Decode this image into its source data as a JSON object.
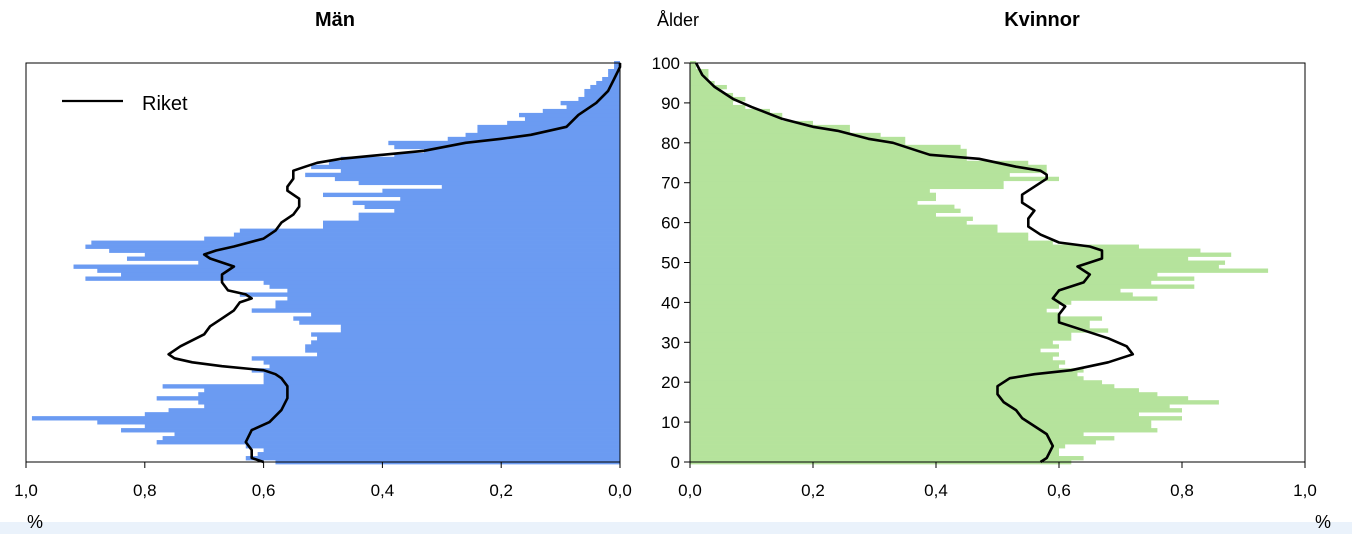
{
  "chart_data": {
    "type": "bar",
    "subtype": "population-pyramid",
    "left_title": "Män",
    "right_title": "Kvinnor",
    "age_axis_title": "Ålder",
    "unit_label": "%",
    "legend_line_label": "Riket",
    "age_ticks": [
      "0",
      "10",
      "20",
      "30",
      "40",
      "50",
      "60",
      "70",
      "80",
      "90",
      "100"
    ],
    "left_x_ticks": [
      "1,0",
      "0,8",
      "0,6",
      "0,4",
      "0,2",
      "0,0"
    ],
    "right_x_ticks": [
      "0,0",
      "0,2",
      "0,4",
      "0,6",
      "0,8",
      "1,0"
    ],
    "xlim": [
      0,
      1.0
    ],
    "ylim": [
      0,
      100
    ],
    "colors": {
      "men_bar": "#6b9bf2",
      "women_bar": "#b5e39c",
      "riket_line": "#000000"
    },
    "legend_position": "top-left",
    "series": [
      {
        "name": "Män",
        "values": [
          0.58,
          0.63,
          0.61,
          0.6,
          0.63,
          0.78,
          0.77,
          0.75,
          0.84,
          0.8,
          0.88,
          0.99,
          0.8,
          0.76,
          0.7,
          0.71,
          0.78,
          0.71,
          0.7,
          0.77,
          0.6,
          0.6,
          0.6,
          0.62,
          0.59,
          0.6,
          0.62,
          0.51,
          0.53,
          0.53,
          0.52,
          0.51,
          0.52,
          0.47,
          0.47,
          0.54,
          0.55,
          0.52,
          0.62,
          0.58,
          0.58,
          0.56,
          0.64,
          0.56,
          0.59,
          0.6,
          0.9,
          0.84,
          0.88,
          0.92,
          0.71,
          0.83,
          0.8,
          0.86,
          0.9,
          0.89,
          0.7,
          0.65,
          0.64,
          0.5,
          0.5,
          0.44,
          0.44,
          0.38,
          0.43,
          0.45,
          0.37,
          0.5,
          0.4,
          0.3,
          0.44,
          0.48,
          0.53,
          0.47,
          0.52,
          0.49,
          0.47,
          0.38,
          0.33,
          0.38,
          0.39,
          0.29,
          0.26,
          0.24,
          0.24,
          0.19,
          0.16,
          0.17,
          0.13,
          0.09,
          0.1,
          0.07,
          0.06,
          0.06,
          0.05,
          0.04,
          0.03,
          0.02,
          0.02,
          0.01,
          0.01
        ]
      },
      {
        "name": "Kvinnor",
        "values": [
          0.62,
          0.64,
          0.6,
          0.6,
          0.61,
          0.66,
          0.69,
          0.64,
          0.76,
          0.75,
          0.75,
          0.8,
          0.73,
          0.8,
          0.78,
          0.86,
          0.81,
          0.76,
          0.73,
          0.69,
          0.67,
          0.64,
          0.63,
          0.64,
          0.6,
          0.61,
          0.59,
          0.6,
          0.57,
          0.6,
          0.59,
          0.62,
          0.62,
          0.68,
          0.65,
          0.65,
          0.67,
          0.6,
          0.58,
          0.6,
          0.62,
          0.76,
          0.72,
          0.7,
          0.82,
          0.75,
          0.82,
          0.76,
          0.94,
          0.86,
          0.87,
          0.81,
          0.88,
          0.83,
          0.73,
          0.59,
          0.55,
          0.55,
          0.5,
          0.5,
          0.45,
          0.46,
          0.4,
          0.44,
          0.43,
          0.37,
          0.4,
          0.4,
          0.39,
          0.51,
          0.51,
          0.6,
          0.52,
          0.58,
          0.58,
          0.55,
          0.45,
          0.45,
          0.45,
          0.44,
          0.35,
          0.35,
          0.31,
          0.26,
          0.26,
          0.2,
          0.15,
          0.15,
          0.13,
          0.09,
          0.07,
          0.09,
          0.07,
          0.05,
          0.06,
          0.04,
          0.03,
          0.03,
          0.03,
          0.01,
          0.01
        ]
      },
      {
        "name": "Riket",
        "side": "left",
        "points": [
          [
            0.6,
            0
          ],
          [
            0.62,
            1
          ],
          [
            0.62,
            3
          ],
          [
            0.63,
            5
          ],
          [
            0.62,
            8
          ],
          [
            0.59,
            10
          ],
          [
            0.57,
            13
          ],
          [
            0.56,
            16
          ],
          [
            0.56,
            19
          ],
          [
            0.57,
            21
          ],
          [
            0.58,
            22
          ],
          [
            0.6,
            23
          ],
          [
            0.67,
            24
          ],
          [
            0.72,
            25
          ],
          [
            0.75,
            26
          ],
          [
            0.76,
            27
          ],
          [
            0.74,
            29
          ],
          [
            0.7,
            32
          ],
          [
            0.69,
            34
          ],
          [
            0.67,
            36
          ],
          [
            0.65,
            38
          ],
          [
            0.64,
            40
          ],
          [
            0.62,
            41
          ],
          [
            0.63,
            42
          ],
          [
            0.66,
            43
          ],
          [
            0.67,
            45
          ],
          [
            0.67,
            47
          ],
          [
            0.65,
            49
          ],
          [
            0.67,
            50
          ],
          [
            0.69,
            51
          ],
          [
            0.7,
            52
          ],
          [
            0.68,
            53
          ],
          [
            0.65,
            54
          ],
          [
            0.6,
            56
          ],
          [
            0.58,
            58
          ],
          [
            0.57,
            60
          ],
          [
            0.55,
            62
          ],
          [
            0.54,
            64
          ],
          [
            0.54,
            66
          ],
          [
            0.56,
            68
          ],
          [
            0.56,
            69
          ],
          [
            0.55,
            71
          ],
          [
            0.55,
            73
          ],
          [
            0.53,
            74
          ],
          [
            0.51,
            75
          ],
          [
            0.47,
            76
          ],
          [
            0.4,
            77
          ],
          [
            0.33,
            78
          ],
          [
            0.26,
            80
          ],
          [
            0.2,
            81
          ],
          [
            0.15,
            82
          ],
          [
            0.09,
            84
          ],
          [
            0.07,
            87
          ],
          [
            0.04,
            90
          ],
          [
            0.02,
            93
          ],
          [
            0.01,
            96
          ],
          [
            0.0,
            99
          ],
          [
            0.0,
            100
          ]
        ]
      },
      {
        "name": "Riket",
        "side": "right",
        "points": [
          [
            0.57,
            0
          ],
          [
            0.58,
            1
          ],
          [
            0.59,
            4
          ],
          [
            0.58,
            7
          ],
          [
            0.56,
            9
          ],
          [
            0.54,
            11
          ],
          [
            0.53,
            13
          ],
          [
            0.51,
            15
          ],
          [
            0.5,
            17
          ],
          [
            0.5,
            19
          ],
          [
            0.52,
            21
          ],
          [
            0.56,
            22
          ],
          [
            0.62,
            23
          ],
          [
            0.68,
            25
          ],
          [
            0.72,
            27
          ],
          [
            0.71,
            29
          ],
          [
            0.68,
            31
          ],
          [
            0.64,
            33
          ],
          [
            0.6,
            35
          ],
          [
            0.6,
            37
          ],
          [
            0.61,
            39
          ],
          [
            0.59,
            41
          ],
          [
            0.6,
            43
          ],
          [
            0.64,
            45
          ],
          [
            0.65,
            47
          ],
          [
            0.63,
            49
          ],
          [
            0.65,
            50
          ],
          [
            0.67,
            51
          ],
          [
            0.67,
            53
          ],
          [
            0.65,
            54
          ],
          [
            0.6,
            55
          ],
          [
            0.57,
            57
          ],
          [
            0.55,
            59
          ],
          [
            0.55,
            61
          ],
          [
            0.56,
            63
          ],
          [
            0.55,
            64
          ],
          [
            0.54,
            65
          ],
          [
            0.54,
            67
          ],
          [
            0.56,
            69
          ],
          [
            0.58,
            71
          ],
          [
            0.58,
            72
          ],
          [
            0.57,
            73
          ],
          [
            0.53,
            74
          ],
          [
            0.47,
            76
          ],
          [
            0.39,
            77
          ],
          [
            0.37,
            78
          ],
          [
            0.33,
            80
          ],
          [
            0.29,
            81
          ],
          [
            0.24,
            83
          ],
          [
            0.2,
            84
          ],
          [
            0.15,
            86
          ],
          [
            0.1,
            89
          ],
          [
            0.07,
            91
          ],
          [
            0.04,
            94
          ],
          [
            0.02,
            97
          ],
          [
            0.01,
            100
          ]
        ]
      }
    ]
  }
}
